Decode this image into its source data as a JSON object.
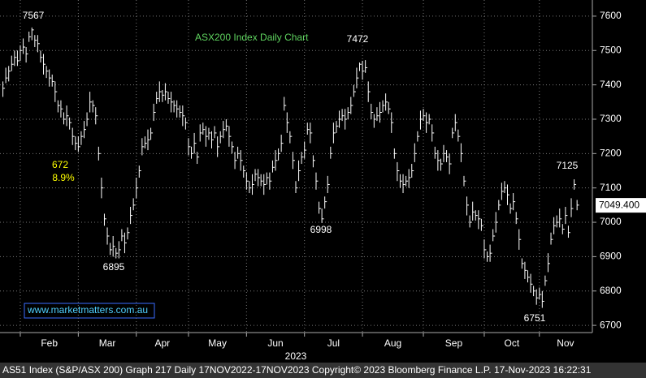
{
  "chart_data": {
    "type": "ohlc",
    "title": "ASX200 Index Daily Chart",
    "watermark": "www.marketmatters.com.au",
    "x_label": "2023",
    "footer": "AS51 Index (S&P/ASX 200) Graph 217  Daily 17NOV2022-17NOV2023 Copyright© 2023 Bloomberg Finance L.P.  17-Nov-2023 16:22:31",
    "color": "#ffffff",
    "grid": true,
    "xlim": [
      -1,
      203
    ],
    "ylim": [
      6679,
      7647
    ],
    "yticks": [
      6700,
      6800,
      6900,
      7000,
      7100,
      7200,
      7300,
      7400,
      7500,
      7600
    ],
    "xticks": [
      {
        "value": 6,
        "label": "Feb"
      },
      {
        "value": 26,
        "label": "Mar"
      },
      {
        "value": 46,
        "label": "Apr"
      },
      {
        "value": 64,
        "label": "May"
      },
      {
        "value": 84,
        "label": "Jun"
      },
      {
        "value": 104,
        "label": "Jul"
      },
      {
        "value": 124,
        "label": "Aug"
      },
      {
        "value": 145,
        "label": "Sep"
      },
      {
        "value": 166,
        "label": "Oct"
      },
      {
        "value": 185,
        "label": "Nov"
      }
    ],
    "last_price": {
      "value": 7049.4,
      "label": "7049.400"
    },
    "annotations": [
      {
        "text": "7567",
        "color": "#ffffff"
      },
      {
        "text": "672",
        "color": "#ffff00"
      },
      {
        "text": "8.9%",
        "color": "#ffff00"
      },
      {
        "text": "6895",
        "color": "#ffffff"
      },
      {
        "text": "6998",
        "color": "#ffffff"
      },
      {
        "text": "7472",
        "color": "#ffffff"
      },
      {
        "text": "7125",
        "color": "#ffffff"
      },
      {
        "text": "6751",
        "color": "#ffffff"
      }
    ],
    "high": [
      7410,
      7450,
      7455,
      7485,
      7500,
      7500,
      7515,
      7535,
      7510,
      7555,
      7567,
      7545,
      7545,
      7500,
      7490,
      7455,
      7445,
      7430,
      7410,
      7355,
      7355,
      7320,
      7340,
      7305,
      7275,
      7250,
      7250,
      7265,
      7295,
      7320,
      7380,
      7355,
      7335,
      7220,
      7130,
      7025,
      6985,
      6940,
      6960,
      6925,
      6945,
      6980,
      6970,
      6985,
      7045,
      7070,
      7130,
      7165,
      7245,
      7250,
      7270,
      7275,
      7345,
      7380,
      7410,
      7385,
      7405,
      7380,
      7380,
      7355,
      7355,
      7340,
      7340,
      7305,
      7245,
      7220,
      7260,
      7205,
      7285,
      7290,
      7280,
      7275,
      7265,
      7280,
      7250,
      7265,
      7295,
      7300,
      7280,
      7235,
      7205,
      7220,
      7210,
      7165,
      7145,
      7120,
      7140,
      7155,
      7155,
      7140,
      7140,
      7145,
      7145,
      7180,
      7210,
      7215,
      7255,
      7365,
      7320,
      7265,
      7205,
      7120,
      7180,
      7205,
      7235,
      7290,
      7290,
      7195,
      7145,
      7060,
      7040,
      7075,
      7135,
      7220,
      7290,
      7295,
      7325,
      7330,
      7330,
      7335,
      7365,
      7400,
      7450,
      7465,
      7470,
      7472,
      7410,
      7345,
      7315,
      7335,
      7350,
      7355,
      7375,
      7350,
      7320,
      7215,
      7175,
      7140,
      7140,
      7135,
      7155,
      7170,
      7230,
      7265,
      7325,
      7330,
      7320,
      7315,
      7285,
      7220,
      7210,
      7185,
      7225,
      7210,
      7200,
      7275,
      7315,
      7270,
      7230,
      7135,
      7075,
      7020,
      7060,
      7035,
      7035,
      7010,
      6950,
      6915,
      6935,
      6980,
      7030,
      7065,
      7115,
      7120,
      7110,
      7055,
      7085,
      7030,
      6980,
      6895,
      6885,
      6860,
      6850,
      6815,
      6805,
      6810,
      6800,
      6845,
      6910,
      6970,
      7015,
      7020,
      7040,
      6995,
      7045,
      6990,
      7070,
      7125,
      7065
    ],
    "low": [
      7365,
      7405,
      7410,
      7440,
      7455,
      7455,
      7470,
      7490,
      7465,
      7525,
      7530,
      7510,
      7495,
      7465,
      7430,
      7420,
      7395,
      7395,
      7350,
      7320,
      7305,
      7285,
      7280,
      7270,
      7225,
      7210,
      7205,
      7225,
      7245,
      7280,
      7320,
      7320,
      7285,
      7180,
      7070,
      6990,
      6935,
      6905,
      6900,
      6895,
      6895,
      6945,
      6910,
      6950,
      6995,
      7035,
      7070,
      7130,
      7195,
      7215,
      7210,
      7240,
      7295,
      7345,
      7350,
      7350,
      7355,
      7345,
      7320,
      7320,
      7305,
      7305,
      7280,
      7270,
      7195,
      7185,
      7200,
      7170,
      7235,
      7255,
      7220,
      7240,
      7215,
      7245,
      7190,
      7230,
      7245,
      7265,
      7220,
      7200,
      7155,
      7185,
      7150,
      7130,
      7095,
      7085,
      7080,
      7120,
      7105,
      7105,
      7080,
      7110,
      7095,
      7145,
      7150,
      7180,
      7205,
      7325,
      7260,
      7230,
      7155,
      7085,
      7120,
      7170,
      7185,
      7255,
      7230,
      7160,
      7095,
      7025,
      6998,
      7040,
      7085,
      7185,
      7230,
      7260,
      7275,
      7295,
      7270,
      7300,
      7315,
      7365,
      7390,
      7440,
      7415,
      7435,
      7350,
      7300,
      7275,
      7295,
      7290,
      7320,
      7325,
      7315,
      7260,
      7185,
      7120,
      7100,
      7085,
      7105,
      7100,
      7130,
      7175,
      7235,
      7270,
      7295,
      7260,
      7285,
      7235,
      7185,
      7150,
      7150,
      7175,
      7175,
      7140,
      7245,
      7265,
      7235,
      7175,
      7105,
      7020,
      6985,
      7005,
      7005,
      6980,
      6975,
      6895,
      6885,
      6885,
      6945,
      6970,
      7035,
      7065,
      7085,
      7050,
      7025,
      7035,
      6995,
      6920,
      6865,
      6835,
      6825,
      6795,
      6785,
      6760,
      6775,
      6751,
      6815,
      6855,
      6935,
      6965,
      6985,
      6985,
      6965,
      6995,
      6955,
      7015,
      7095,
      7035
    ],
    "close": [
      7390,
      7420,
      7440,
      7460,
      7480,
      7470,
      7500,
      7510,
      7490,
      7540,
      7560,
      7530,
      7520,
      7480,
      7460,
      7440,
      7420,
      7410,
      7380,
      7340,
      7330,
      7300,
      7310,
      7290,
      7250,
      7230,
      7220,
      7250,
      7270,
      7300,
      7350,
      7340,
      7310,
      7200,
      7100,
      7010,
      6960,
      6920,
      6930,
      6910,
      6920,
      6960,
      6940,
      6970,
      7020,
      7050,
      7100,
      7150,
      7220,
      7230,
      7240,
      7260,
      7320,
      7360,
      7380,
      7370,
      7380,
      7360,
      7350,
      7340,
      7330,
      7320,
      7310,
      7290,
      7220,
      7200,
      7230,
      7190,
      7260,
      7270,
      7250,
      7260,
      7240,
      7260,
      7220,
      7250,
      7270,
      7280,
      7250,
      7220,
      7180,
      7200,
      7180,
      7150,
      7120,
      7100,
      7110,
      7140,
      7130,
      7120,
      7110,
      7130,
      7120,
      7160,
      7180,
      7200,
      7230,
      7340,
      7290,
      7250,
      7180,
      7100,
      7150,
      7190,
      7210,
      7270,
      7260,
      7180,
      7120,
      7040,
      7010,
      7060,
      7110,
      7200,
      7260,
      7280,
      7300,
      7310,
      7300,
      7320,
      7340,
      7380,
      7420,
      7460,
      7440,
      7450,
      7380,
      7320,
      7300,
      7310,
      7320,
      7340,
      7350,
      7330,
      7290,
      7200,
      7150,
      7120,
      7110,
      7120,
      7130,
      7150,
      7200,
      7250,
      7300,
      7310,
      7290,
      7300,
      7260,
      7200,
      7180,
      7170,
      7200,
      7190,
      7170,
      7260,
      7290,
      7250,
      7200,
      7120,
      7050,
      7000,
      7030,
      7020,
      7010,
      6990,
      6920,
      6900,
      6910,
      6960,
      7000,
      7050,
      7090,
      7100,
      7080,
      7040,
      7060,
      7010,
      6950,
      6880,
      6860,
      6840,
      6820,
      6800,
      6780,
      6790,
      6770,
      6830,
      6880,
      6950,
      6990,
      7000,
      7010,
      6980,
      7020,
      6970,
      7040,
      7110,
      7050
    ]
  }
}
